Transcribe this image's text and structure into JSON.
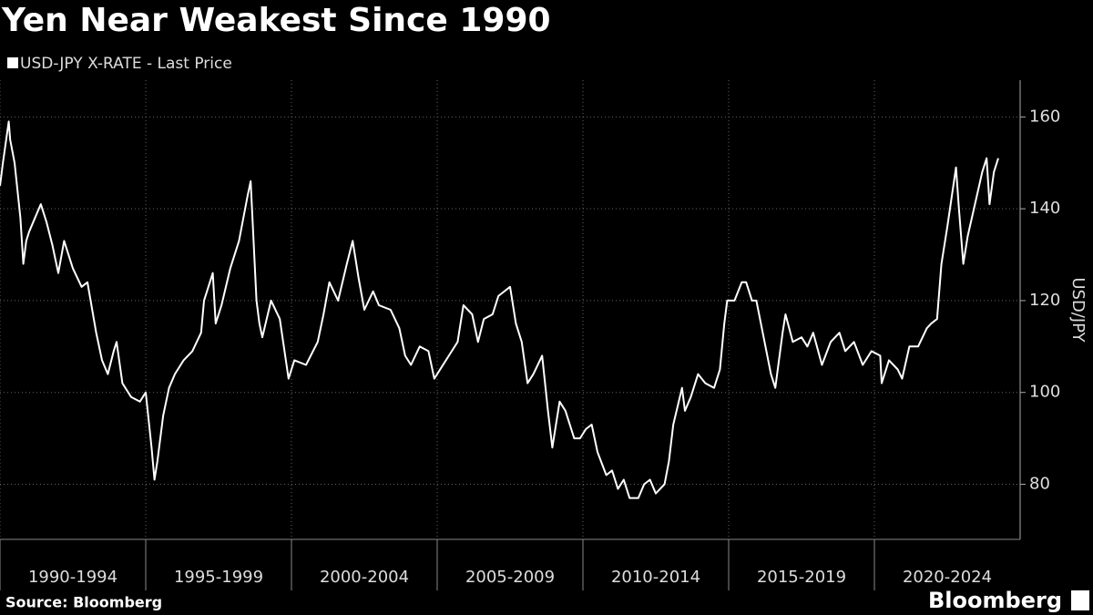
{
  "chart_data": {
    "type": "line",
    "title": "Yen Near Weakest Since 1990",
    "y_label": "USD/JPY",
    "source": "Source: Bloomberg",
    "logo_text": "Bloomberg",
    "x": [
      1990.0,
      1990.1,
      1990.3,
      1990.35,
      1990.5,
      1990.7,
      1990.8,
      1990.9,
      1991.0,
      1991.2,
      1991.4,
      1991.6,
      1991.8,
      1992.0,
      1992.2,
      1992.5,
      1992.8,
      1993.0,
      1993.3,
      1993.5,
      1993.7,
      1993.9,
      1994.0,
      1994.2,
      1994.5,
      1994.8,
      1995.0,
      1995.2,
      1995.3,
      1995.4,
      1995.6,
      1995.8,
      1996.0,
      1996.3,
      1996.6,
      1996.9,
      1997.0,
      1997.3,
      1997.4,
      1997.6,
      1997.9,
      1998.2,
      1998.5,
      1998.6,
      1998.8,
      1998.9,
      1999.0,
      1999.3,
      1999.6,
      1999.9,
      2000.1,
      2000.5,
      2000.9,
      2001.1,
      2001.3,
      2001.6,
      2001.9,
      2002.1,
      2002.3,
      2002.5,
      2002.8,
      2003.0,
      2003.4,
      2003.7,
      2003.9,
      2004.1,
      2004.4,
      2004.7,
      2004.9,
      2005.0,
      2005.4,
      2005.7,
      2005.9,
      2006.2,
      2006.4,
      2006.6,
      2006.9,
      2007.1,
      2007.5,
      2007.7,
      2007.9,
      2008.1,
      2008.3,
      2008.6,
      2008.8,
      2008.95,
      2009.2,
      2009.4,
      2009.7,
      2009.9,
      2010.1,
      2010.3,
      2010.5,
      2010.8,
      2011.0,
      2011.2,
      2011.4,
      2011.6,
      2011.9,
      2012.1,
      2012.3,
      2012.5,
      2012.8,
      2012.95,
      2013.1,
      2013.4,
      2013.5,
      2013.7,
      2013.95,
      2014.2,
      2014.5,
      2014.7,
      2014.85,
      2014.95,
      2015.2,
      2015.45,
      2015.6,
      2015.8,
      2015.95,
      2016.2,
      2016.45,
      2016.6,
      2016.85,
      2016.95,
      2017.2,
      2017.5,
      2017.7,
      2017.9,
      2018.2,
      2018.5,
      2018.8,
      2019.0,
      2019.3,
      2019.6,
      2019.9,
      2020.2,
      2020.25,
      2020.5,
      2020.8,
      2020.95,
      2021.2,
      2021.5,
      2021.8,
      2021.95,
      2022.15,
      2022.3,
      2022.5,
      2022.8,
      2022.9,
      2023.05,
      2023.2,
      2023.45,
      2023.7,
      2023.85,
      2023.95,
      2024.1,
      2024.25
    ],
    "series": [
      {
        "name": "USD-JPY X-RATE - Last Price",
        "color": "#ffffff",
        "values": [
          145,
          150,
          159,
          155,
          150,
          138,
          128,
          133,
          135,
          138,
          141,
          137,
          132,
          126,
          133,
          127,
          123,
          124,
          113,
          107,
          104,
          109,
          111,
          102,
          99,
          98,
          100,
          88,
          81,
          85,
          95,
          101,
          104,
          107,
          109,
          113,
          120,
          126,
          115,
          119,
          127,
          133,
          143,
          146,
          120,
          115,
          112,
          120,
          116,
          103,
          107,
          106,
          111,
          117,
          124,
          120,
          128,
          133,
          125,
          118,
          122,
          119,
          118,
          114,
          108,
          106,
          110,
          109,
          103,
          104,
          108,
          111,
          119,
          117,
          111,
          116,
          117,
          121,
          123,
          115,
          111,
          102,
          104,
          108,
          96,
          88,
          98,
          96,
          90,
          90,
          92,
          93,
          87,
          82,
          83,
          79,
          81,
          77,
          77,
          80,
          81,
          78,
          80,
          85,
          93,
          101,
          96,
          99,
          104,
          102,
          101,
          105,
          115,
          120,
          120,
          124,
          124,
          120,
          120,
          112,
          104,
          101,
          113,
          117,
          111,
          112,
          110,
          113,
          106,
          111,
          113,
          109,
          111,
          106,
          109,
          108,
          102,
          107,
          105,
          103,
          110,
          110,
          114,
          115,
          116,
          128,
          136,
          149,
          140,
          128,
          134,
          141,
          148,
          151,
          141,
          148,
          151
        ]
      }
    ],
    "xlim": [
      1990,
      2025
    ],
    "xticks": [
      {
        "value": 1990,
        "label": "1990-1994"
      },
      {
        "value": 1995,
        "label": "1995-1999"
      },
      {
        "value": 2000,
        "label": "2000-2004"
      },
      {
        "value": 2005,
        "label": "2005-2009"
      },
      {
        "value": 2010,
        "label": "2010-2014"
      },
      {
        "value": 2015,
        "label": "2015-2019"
      },
      {
        "value": 2020,
        "label": "2020-2024"
      }
    ],
    "ylim": [
      68,
      168
    ],
    "yticks": [
      80,
      100,
      120,
      140,
      160
    ],
    "grid": true
  }
}
